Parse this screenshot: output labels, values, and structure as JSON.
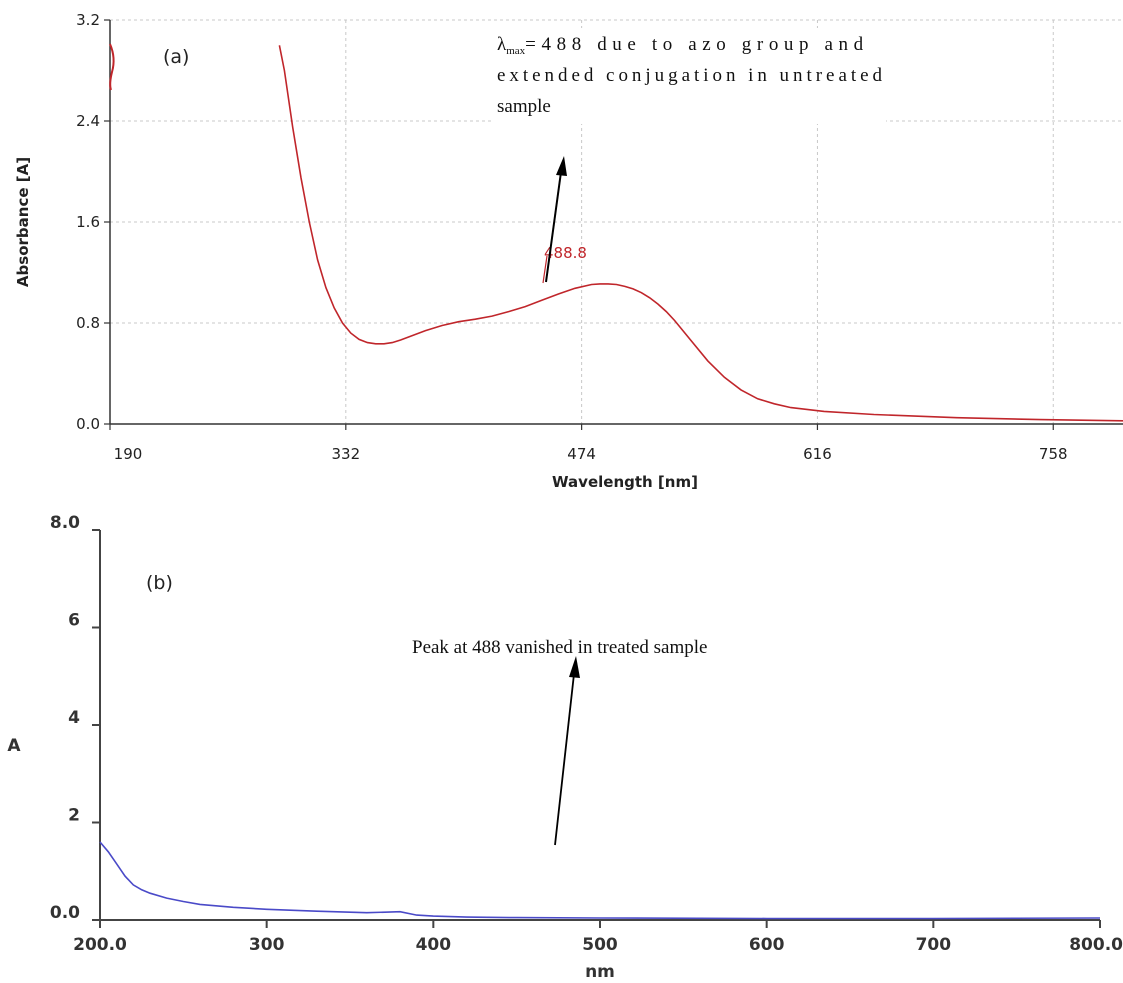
{
  "chart_data": [
    {
      "panel": "(a)",
      "type": "line",
      "xlabel": "Wavelength [nm]",
      "ylabel": "Absorbance [A]",
      "xlim": [
        190,
        800
      ],
      "ylim": [
        0,
        3.2
      ],
      "x_ticks": [
        "190",
        "332",
        "474",
        "616",
        "758"
      ],
      "y_ticks": [
        "0.0",
        "0.8",
        "1.6",
        "2.4",
        "3.2"
      ],
      "grid": true,
      "series": [
        {
          "color": "#c0262b",
          "x": [
            292,
            295,
            300,
            305,
            310,
            315,
            320,
            325,
            330,
            335,
            340,
            345,
            350,
            355,
            360,
            365,
            370,
            380,
            390,
            400,
            410,
            420,
            430,
            440,
            450,
            460,
            470,
            480,
            485,
            490,
            495,
            500,
            505,
            510,
            515,
            520,
            525,
            530,
            540,
            550,
            560,
            570,
            580,
            590,
            600,
            620,
            650,
            700,
            750,
            800
          ],
          "y": [
            3.0,
            2.8,
            2.35,
            1.95,
            1.6,
            1.3,
            1.08,
            0.92,
            0.8,
            0.72,
            0.67,
            0.645,
            0.635,
            0.635,
            0.645,
            0.665,
            0.69,
            0.74,
            0.78,
            0.81,
            0.83,
            0.855,
            0.89,
            0.93,
            0.98,
            1.03,
            1.075,
            1.105,
            1.11,
            1.11,
            1.105,
            1.09,
            1.07,
            1.04,
            1.0,
            0.95,
            0.89,
            0.82,
            0.66,
            0.5,
            0.37,
            0.27,
            0.2,
            0.16,
            0.13,
            0.1,
            0.075,
            0.05,
            0.035,
            0.025
          ]
        }
      ],
      "annotations": {
        "peak_label": "488.8",
        "lambda_symbol": "λ",
        "lambda_subscript": "max",
        "note_line1": "=488 due to azo group and",
        "note_line2": "extended conjugation in untreated",
        "note_line3": "sample"
      }
    },
    {
      "panel": "(b)",
      "type": "line",
      "xlabel": "nm",
      "ylabel": "A",
      "xlim": [
        200,
        800
      ],
      "ylim": [
        0,
        8
      ],
      "x_ticks": [
        "200.0",
        "300",
        "400",
        "500",
        "600",
        "700",
        "800.0"
      ],
      "y_ticks": [
        "0.0",
        "2",
        "4",
        "6",
        "8.0"
      ],
      "grid": false,
      "series": [
        {
          "color": "#4a4ac8",
          "x": [
            200,
            205,
            210,
            215,
            220,
            225,
            230,
            240,
            250,
            260,
            280,
            300,
            330,
            360,
            380,
            390,
            400,
            420,
            450,
            500,
            600,
            700,
            800
          ],
          "y": [
            1.6,
            1.4,
            1.15,
            0.9,
            0.72,
            0.62,
            0.55,
            0.45,
            0.38,
            0.32,
            0.26,
            0.22,
            0.18,
            0.15,
            0.17,
            0.1,
            0.08,
            0.06,
            0.05,
            0.04,
            0.03,
            0.03,
            0.04
          ]
        }
      ],
      "annotations": {
        "note": "Peak at 488 vanished in treated sample"
      }
    }
  ]
}
